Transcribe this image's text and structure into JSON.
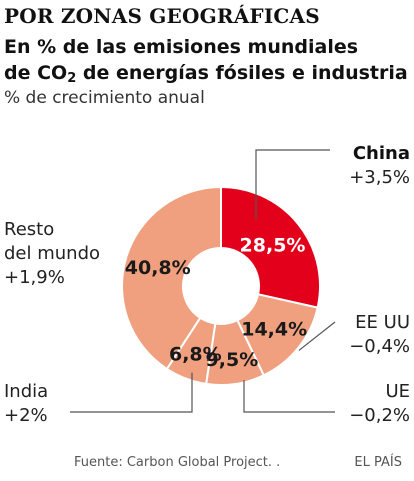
{
  "header": {
    "kicker": "POR ZONAS GEOGRÁFICAS",
    "title_line1": "En % de las emisiones mundiales",
    "title_line2_a": "de CO",
    "title_line2_sub": "2",
    "title_line2_b": " de energías fósiles e industria",
    "subtitle": "% de crecimiento anual"
  },
  "labels": {
    "china_name": "China",
    "china_growth": "+3,5%",
    "eeuu_name": "EE UU",
    "eeuu_growth": "−0,4%",
    "ue_name": "UE",
    "ue_growth": "−0,2%",
    "india_name": "India",
    "india_growth": "+2%",
    "resto_line1": "Resto",
    "resto_line2": "del mundo",
    "resto_growth": "+1,9%"
  },
  "footer": {
    "source": "Fuente: Carbon Global Project. .",
    "brand": "EL PAÍS"
  },
  "colors": {
    "china": "#e2001a",
    "others": "#f0a07e",
    "divider": "#ffffff",
    "leader": "#555555"
  },
  "chart_data": {
    "type": "pie",
    "variant": "donut",
    "slices": [
      {
        "name": "China",
        "value": 28.5,
        "label": "28,5%",
        "growth": "+3,5%"
      },
      {
        "name": "EE UU",
        "value": 14.4,
        "label": "14,4%",
        "growth": "−0,4%"
      },
      {
        "name": "UE",
        "value": 9.5,
        "label": "9,5%",
        "growth": "−0,2%"
      },
      {
        "name": "India",
        "value": 6.8,
        "label": "6,8%",
        "growth": "+2%"
      },
      {
        "name": "Resto del mundo",
        "value": 40.8,
        "label": "40,8%",
        "growth": "+1,9%"
      }
    ]
  }
}
